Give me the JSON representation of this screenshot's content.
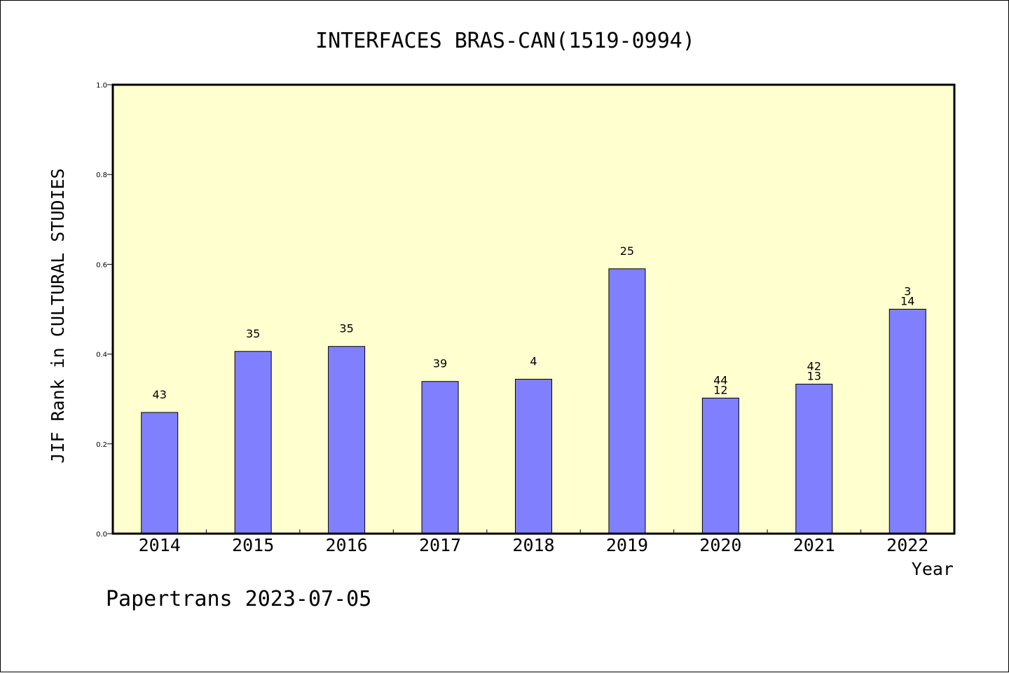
{
  "chart_data": {
    "type": "bar",
    "title": "INTERFACES BRAS-CAN(1519-0994)",
    "xlabel": "Year",
    "ylabel": "JIF Rank in CULTURAL STUDIES",
    "footer": "Papertrans 2023-07-05",
    "categories": [
      "2014",
      "2015",
      "2016",
      "2017",
      "2018",
      "2019",
      "2020",
      "2021",
      "2022"
    ],
    "values": [
      0.27,
      0.406,
      0.417,
      0.339,
      0.344,
      0.59,
      0.302,
      0.333,
      0.5
    ],
    "labels": [
      [
        "43"
      ],
      [
        "35"
      ],
      [
        "35"
      ],
      [
        "39"
      ],
      [
        "4"
      ],
      [
        "25"
      ],
      [
        "44",
        "12"
      ],
      [
        "42",
        "13"
      ],
      [
        "3",
        "14"
      ]
    ],
    "ylim": [
      0,
      1.0
    ],
    "yticks": [
      "0.0",
      "0.2",
      "0.4",
      "0.6",
      "0.8",
      "1.0"
    ],
    "grid": false,
    "colors": {
      "plot_background": "#ffffd0",
      "bar_fill": "#8080ff",
      "bar_stroke": "#000000",
      "axis": "#000000"
    }
  }
}
